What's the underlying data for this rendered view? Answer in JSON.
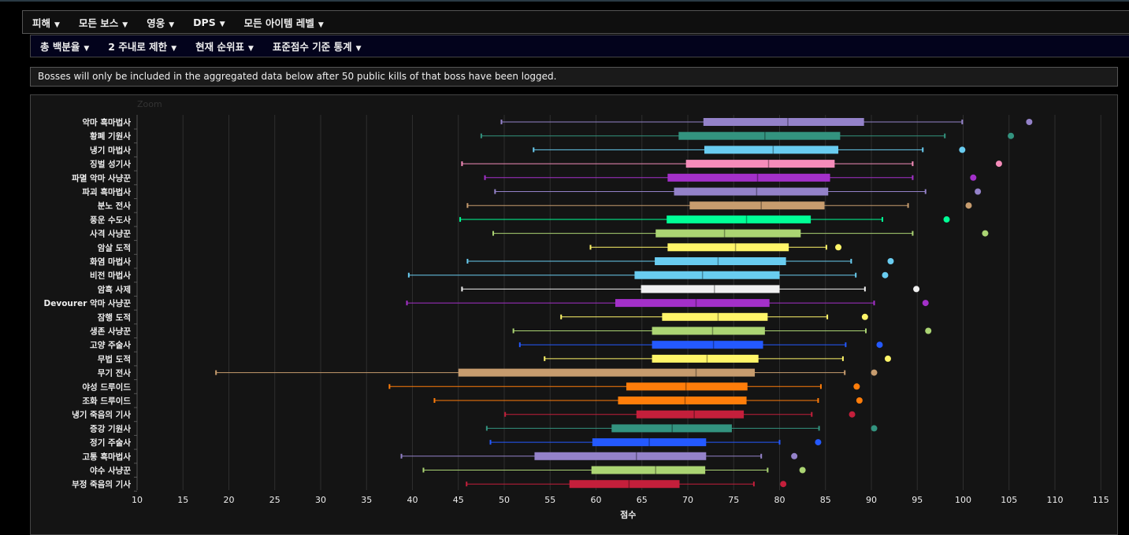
{
  "nav_primary": [
    {
      "label": "피해"
    },
    {
      "label": "모든 보스"
    },
    {
      "label": "영웅"
    },
    {
      "label": "DPS"
    },
    {
      "label": "모든 아이템 레벨"
    }
  ],
  "nav_secondary": [
    {
      "label": "총 백분율"
    },
    {
      "label": "2 주내로 제한"
    },
    {
      "label": "현재 순위표"
    },
    {
      "label": "표준점수 기준 통계"
    }
  ],
  "caret_glyph": "▼",
  "notice": "Bosses will only be included in the aggregated data below after 50 public kills of that boss have been logged.",
  "chart_data": {
    "type": "boxplot",
    "orientation": "horizontal",
    "zoom_label": "Zoom",
    "xlabel": "점수",
    "xlim": [
      10,
      117
    ],
    "xticks": [
      10,
      15,
      20,
      25,
      30,
      35,
      40,
      45,
      50,
      55,
      60,
      65,
      70,
      75,
      80,
      85,
      90,
      95,
      100,
      105,
      110,
      115
    ],
    "grid": true,
    "series": [
      {
        "name": "악마 흑마법사",
        "color": "#9482c9",
        "min": 49.7,
        "q1": 71.7,
        "median": 80.9,
        "q3": 89.2,
        "max": 99.9,
        "outlier": 107.2
      },
      {
        "name": "황폐 기원사",
        "color": "#33937f",
        "min": 47.5,
        "q1": 69.0,
        "median": 78.4,
        "q3": 86.6,
        "max": 98.0,
        "outlier": 105.2
      },
      {
        "name": "냉기 마법사",
        "color": "#69ccf0",
        "min": 53.2,
        "q1": 71.8,
        "median": 79.3,
        "q3": 86.4,
        "max": 95.6,
        "outlier": 99.9
      },
      {
        "name": "징벌 성기사",
        "color": "#f58cba",
        "min": 45.4,
        "q1": 69.8,
        "median": 78.8,
        "q3": 86.0,
        "max": 94.5,
        "outlier": 103.9
      },
      {
        "name": "파멸 악마 사냥꾼",
        "color": "#a330c9",
        "min": 47.9,
        "q1": 67.8,
        "median": 77.6,
        "q3": 85.5,
        "max": 94.5,
        "outlier": 101.1
      },
      {
        "name": "파괴 흑마법사",
        "color": "#9482c9",
        "min": 49.0,
        "q1": 68.5,
        "median": 77.5,
        "q3": 85.3,
        "max": 95.9,
        "outlier": 101.6
      },
      {
        "name": "분노 전사",
        "color": "#c79c6e",
        "min": 46.0,
        "q1": 70.2,
        "median": 78.0,
        "q3": 84.9,
        "max": 94.0,
        "outlier": 100.6
      },
      {
        "name": "풍운 수도사",
        "color": "#00ff96",
        "min": 45.2,
        "q1": 67.7,
        "median": 76.4,
        "q3": 83.4,
        "max": 91.2,
        "outlier": 98.2
      },
      {
        "name": "사격 사냥꾼",
        "color": "#abd473",
        "min": 48.8,
        "q1": 66.5,
        "median": 74.0,
        "q3": 82.3,
        "max": 94.5,
        "outlier": 102.4
      },
      {
        "name": "암살 도적",
        "color": "#fff569",
        "min": 59.4,
        "q1": 67.8,
        "median": 75.2,
        "q3": 81.0,
        "max": 85.1,
        "outlier": 86.4
      },
      {
        "name": "화염 마법사",
        "color": "#69ccf0",
        "min": 46.0,
        "q1": 66.4,
        "median": 73.3,
        "q3": 80.7,
        "max": 87.8,
        "outlier": 92.1
      },
      {
        "name": "비전 마법사",
        "color": "#69ccf0",
        "min": 39.6,
        "q1": 64.2,
        "median": 71.6,
        "q3": 80.0,
        "max": 88.3,
        "outlier": 91.5
      },
      {
        "name": "암흑 사제",
        "color": "#f0f0f0",
        "min": 45.4,
        "q1": 64.9,
        "median": 72.9,
        "q3": 80.0,
        "max": 89.3,
        "outlier": 94.9
      },
      {
        "name": "Devourer 악마 사냥꾼",
        "color": "#a330c9",
        "min": 39.4,
        "q1": 62.1,
        "median": 70.9,
        "q3": 78.9,
        "max": 90.3,
        "outlier": 95.9
      },
      {
        "name": "잠행 도적",
        "color": "#fff569",
        "min": 56.2,
        "q1": 67.2,
        "median": 73.3,
        "q3": 78.7,
        "max": 85.2,
        "outlier": 89.3
      },
      {
        "name": "생존 사냥꾼",
        "color": "#abd473",
        "min": 51.0,
        "q1": 66.1,
        "median": 72.7,
        "q3": 78.4,
        "max": 89.4,
        "outlier": 96.2
      },
      {
        "name": "고양 주술사",
        "color": "#2459ff",
        "min": 51.7,
        "q1": 66.1,
        "median": 72.8,
        "q3": 78.2,
        "max": 87.2,
        "outlier": 90.9
      },
      {
        "name": "무법 도적",
        "color": "#fff569",
        "min": 54.4,
        "q1": 66.1,
        "median": 72.1,
        "q3": 77.7,
        "max": 86.9,
        "outlier": 91.8
      },
      {
        "name": "무기 전사",
        "color": "#c79c6e",
        "min": 18.6,
        "q1": 45.0,
        "median": 70.9,
        "q3": 77.3,
        "max": 87.1,
        "outlier": 90.3
      },
      {
        "name": "야성 드루이드",
        "color": "#ff7d0a",
        "min": 37.5,
        "q1": 63.3,
        "median": 69.8,
        "q3": 76.5,
        "max": 84.5,
        "outlier": 88.4
      },
      {
        "name": "조화 드루이드",
        "color": "#ff7d0a",
        "min": 42.4,
        "q1": 62.4,
        "median": 69.7,
        "q3": 76.4,
        "max": 84.2,
        "outlier": 88.7
      },
      {
        "name": "냉기 죽음의 기사",
        "color": "#c41f3b",
        "min": 50.1,
        "q1": 64.4,
        "median": 70.7,
        "q3": 76.1,
        "max": 83.5,
        "outlier": 87.9
      },
      {
        "name": "증강 기원사",
        "color": "#33937f",
        "min": 48.1,
        "q1": 61.7,
        "median": 68.3,
        "q3": 74.8,
        "max": 84.3,
        "outlier": 90.3
      },
      {
        "name": "정기 주술사",
        "color": "#2459ff",
        "min": 48.5,
        "q1": 59.6,
        "median": 65.8,
        "q3": 72.0,
        "max": 80.0,
        "outlier": 84.2
      },
      {
        "name": "고통 흑마법사",
        "color": "#9482c9",
        "min": 38.8,
        "q1": 53.3,
        "median": 64.4,
        "q3": 72.0,
        "max": 78.0,
        "outlier": 81.6
      },
      {
        "name": "야수 사냥꾼",
        "color": "#abd473",
        "min": 41.2,
        "q1": 59.5,
        "median": 66.5,
        "q3": 71.9,
        "max": 78.7,
        "outlier": 82.5
      },
      {
        "name": "부정 죽음의 기사",
        "color": "#c41f3b",
        "min": 45.9,
        "q1": 57.1,
        "median": 63.6,
        "q3": 69.1,
        "max": 77.2,
        "outlier": 80.4
      }
    ]
  }
}
